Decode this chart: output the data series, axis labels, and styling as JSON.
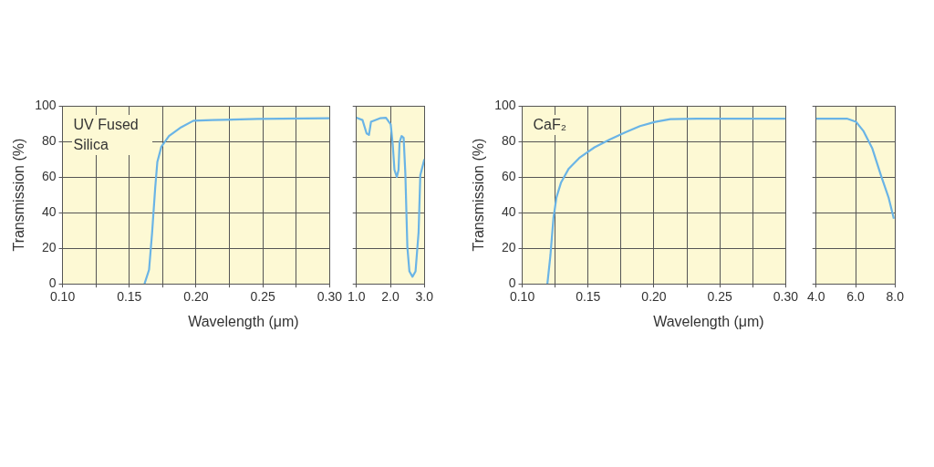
{
  "chart_data": [
    {
      "type": "line",
      "ylabel": "Transmission (%)",
      "xlabel": "Wavelength (μm)",
      "annotations": [
        "UV Fused Silica"
      ],
      "x": [
        0.1614,
        0.1648,
        0.1671,
        0.1694,
        0.171,
        0.174,
        0.1797,
        0.1889,
        0.198,
        0.212,
        0.246,
        0.3
      ],
      "series": [
        {
          "color": "#6ab4e6",
          "values": [
            0,
            7.9,
            29,
            54,
            68.5,
            77,
            83,
            88,
            91.6,
            92,
            92.6,
            93
          ]
        }
      ],
      "xlim": [
        0.1,
        0.3
      ],
      "ylim": [
        0,
        100
      ],
      "xticks": [
        {
          "value": 0.1,
          "label": "0.10"
        },
        {
          "value": 0.125,
          "label": null
        },
        {
          "value": 0.15,
          "label": "0.15"
        },
        {
          "value": 0.175,
          "label": null
        },
        {
          "value": 0.2,
          "label": "0.20"
        },
        {
          "value": 0.225,
          "label": null
        },
        {
          "value": 0.25,
          "label": "0.25"
        },
        {
          "value": 0.275,
          "label": null
        },
        {
          "value": 0.3,
          "label": "0.30"
        }
      ],
      "yticks": [
        0,
        20,
        40,
        60,
        80,
        100
      ],
      "grid": true,
      "marker": "none"
    },
    {
      "type": "line",
      "x": [
        1.0,
        1.18,
        1.3,
        1.37,
        1.43,
        1.69,
        1.87,
        2.01,
        2.07,
        2.12,
        2.19,
        2.24,
        2.27,
        2.33,
        2.39,
        2.44,
        2.5,
        2.56,
        2.65,
        2.74,
        2.83,
        2.88,
        3.0
      ],
      "series": [
        {
          "color": "#6ab4e6",
          "values": [
            93.3,
            92,
            84.5,
            83.7,
            91,
            93,
            93.3,
            89.6,
            78,
            64,
            60,
            64,
            79.6,
            83,
            82,
            62,
            20.5,
            7,
            4,
            7,
            29,
            61,
            70
          ]
        }
      ],
      "xlim": [
        1,
        3
      ],
      "ylim": [
        0,
        100
      ],
      "xticks": [
        {
          "value": 1,
          "label": "1.0"
        },
        {
          "value": 2,
          "label": "2.0"
        },
        {
          "value": 3,
          "label": "3.0"
        }
      ],
      "yticks": [
        0,
        20,
        40,
        60,
        80,
        100
      ],
      "grid": true,
      "tick_labels": "x",
      "marker": "none"
    },
    {
      "type": "line",
      "ylabel": "Transmission (%)",
      "xlabel": "Wavelength (μm)",
      "annotations": [
        "CaF₂"
      ],
      "x": [
        0.1191,
        0.1214,
        0.1237,
        0.126,
        0.1295,
        0.1353,
        0.1433,
        0.1549,
        0.1664,
        0.178,
        0.1894,
        0.2009,
        0.2124,
        0.2355,
        0.3
      ],
      "series": [
        {
          "color": "#6ab4e6",
          "values": [
            0,
            16,
            37,
            48.6,
            57,
            64.7,
            70.7,
            76.7,
            81,
            85,
            88.6,
            91,
            92.5,
            92.8,
            92.8
          ]
        }
      ],
      "xlim": [
        0.1,
        0.3
      ],
      "ylim": [
        0,
        100
      ],
      "xticks": [
        {
          "value": 0.1,
          "label": "0.10"
        },
        {
          "value": 0.125,
          "label": null
        },
        {
          "value": 0.15,
          "label": "0.15"
        },
        {
          "value": 0.175,
          "label": null
        },
        {
          "value": 0.2,
          "label": "0.20"
        },
        {
          "value": 0.225,
          "label": null
        },
        {
          "value": 0.25,
          "label": "0.25"
        },
        {
          "value": 0.275,
          "label": null
        },
        {
          "value": 0.3,
          "label": "0.30"
        }
      ],
      "yticks": [
        0,
        20,
        40,
        60,
        80,
        100
      ],
      "grid": true,
      "marker": "none"
    },
    {
      "type": "line",
      "x": [
        4.0,
        5.56,
        6.02,
        6.39,
        6.85,
        7.3,
        7.67,
        7.94
      ],
      "series": [
        {
          "color": "#6ab4e6",
          "values": [
            92.8,
            92.8,
            91,
            86,
            76,
            60.5,
            48.6,
            36.6
          ]
        }
      ],
      "xlim": [
        4,
        8
      ],
      "ylim": [
        0,
        100
      ],
      "xticks": [
        {
          "value": 4,
          "label": "4.0"
        },
        {
          "value": 6,
          "label": "6.0"
        },
        {
          "value": 8,
          "label": "8.0"
        }
      ],
      "yticks": [
        0,
        20,
        40,
        60,
        80,
        100
      ],
      "grid": true,
      "tick_labels": "x",
      "marker": "none"
    }
  ]
}
